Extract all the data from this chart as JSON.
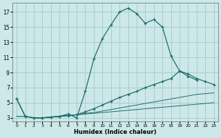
{
  "xlabel": "Humidex (Indice chaleur)",
  "bg_color": "#cce8e8",
  "grid_color": "#aacccc",
  "line_color": "#1a6b6b",
  "xlim": [
    -0.5,
    23.5
  ],
  "ylim": [
    2.5,
    18.2
  ],
  "xticks": [
    0,
    1,
    2,
    3,
    4,
    5,
    6,
    7,
    8,
    9,
    10,
    11,
    12,
    13,
    14,
    15,
    16,
    17,
    18,
    19,
    20,
    21,
    22,
    23
  ],
  "yticks": [
    3,
    5,
    7,
    9,
    11,
    13,
    15,
    17
  ],
  "line1_x": [
    0,
    1,
    2,
    3,
    4,
    5,
    6,
    7,
    8,
    9,
    10,
    11,
    12,
    13,
    14,
    15,
    16,
    17,
    18,
    19,
    20,
    21
  ],
  "line1_y": [
    5.5,
    3.2,
    3.0,
    3.0,
    3.1,
    3.2,
    3.5,
    3.0,
    6.5,
    10.8,
    13.5,
    15.3,
    17.0,
    17.5,
    16.8,
    15.5,
    16.0,
    15.0,
    11.2,
    9.2,
    8.5,
    8.0
  ],
  "line2_x": [
    0,
    1,
    2,
    3,
    4,
    5,
    6,
    7,
    8,
    9,
    10,
    11,
    12,
    13,
    14,
    15,
    16,
    17,
    18,
    19,
    20,
    21,
    22,
    23
  ],
  "line2_y": [
    5.5,
    3.2,
    3.0,
    3.0,
    3.1,
    3.2,
    3.3,
    3.4,
    3.8,
    4.2,
    4.7,
    5.2,
    5.7,
    6.1,
    6.5,
    7.0,
    7.4,
    7.8,
    8.2,
    9.2,
    8.8,
    8.2,
    7.8,
    7.4
  ],
  "line3_x": [
    0,
    1,
    2,
    3,
    4,
    5,
    6,
    7,
    8,
    9,
    10,
    11,
    12,
    13,
    14,
    15,
    16,
    17,
    18,
    19,
    20,
    21,
    22,
    23
  ],
  "line3_y": [
    3.2,
    3.2,
    3.0,
    3.0,
    3.1,
    3.2,
    3.3,
    3.4,
    3.6,
    3.7,
    3.9,
    4.1,
    4.3,
    4.5,
    4.7,
    4.9,
    5.1,
    5.3,
    5.5,
    5.7,
    5.9,
    6.1,
    6.2,
    6.3
  ],
  "line4_x": [
    0,
    1,
    2,
    3,
    4,
    5,
    6,
    7,
    8,
    9,
    10,
    11,
    12,
    13,
    14,
    15,
    16,
    17,
    18,
    19,
    20,
    21,
    22,
    23
  ],
  "line4_y": [
    3.2,
    3.2,
    3.0,
    3.0,
    3.1,
    3.2,
    3.3,
    3.4,
    3.5,
    3.6,
    3.7,
    3.8,
    3.9,
    4.0,
    4.1,
    4.2,
    4.3,
    4.4,
    4.5,
    4.6,
    4.7,
    4.8,
    4.9,
    5.0
  ]
}
